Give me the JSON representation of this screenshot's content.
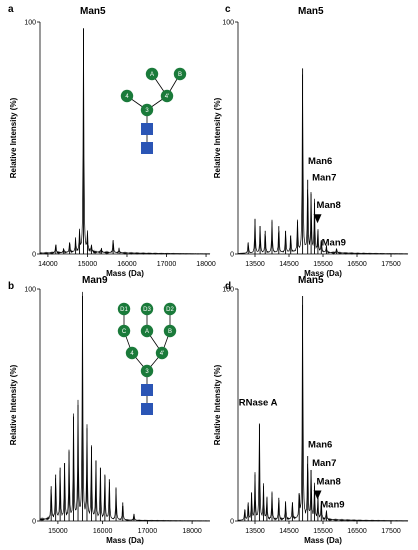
{
  "colors": {
    "trace": "#000000",
    "mannose": "#1a7a3a",
    "glcnac": "#2b55b5"
  },
  "chart_data": [
    {
      "panel": "a",
      "type": "line",
      "title": "Man5",
      "xlabel": "Mass (Da)",
      "ylabel": "Relative Intensity (%)",
      "xlim": [
        13800,
        18100
      ],
      "ylim": [
        0,
        100
      ],
      "xticks": [
        14000,
        15000,
        16000,
        17000,
        18000
      ],
      "yticks": [
        0,
        100
      ],
      "peaks": [
        {
          "x": 14200,
          "y": 4
        },
        {
          "x": 14400,
          "y": 2
        },
        {
          "x": 14550,
          "y": 5
        },
        {
          "x": 14700,
          "y": 6
        },
        {
          "x": 14800,
          "y": 9
        },
        {
          "x": 14900,
          "y": 97
        },
        {
          "x": 15000,
          "y": 8
        },
        {
          "x": 15100,
          "y": 3
        },
        {
          "x": 15350,
          "y": 2
        },
        {
          "x": 15650,
          "y": 6
        },
        {
          "x": 15800,
          "y": 2
        }
      ],
      "glycan": {
        "mannose": [
          {
            "id": "m3",
            "label": "3"
          },
          {
            "id": "m4a",
            "label": "4"
          },
          {
            "id": "m4b",
            "label": "4'"
          },
          {
            "id": "mA",
            "label": "A"
          },
          {
            "id": "mB",
            "label": "B"
          }
        ],
        "links": [
          [
            "m3",
            "m4a"
          ],
          [
            "m3",
            "m4b"
          ],
          [
            "m4b",
            "mA"
          ],
          [
            "m4b",
            "mB"
          ]
        ],
        "glcnac_count": 2
      }
    },
    {
      "panel": "b",
      "type": "line",
      "title": "Man9",
      "xlabel": "Mass (Da)",
      "ylabel": "Relative Intensity (%)",
      "xlim": [
        14600,
        18400
      ],
      "ylim": [
        0,
        100
      ],
      "xticks": [
        15000,
        16000,
        17000,
        18000
      ],
      "yticks": [
        0,
        100
      ],
      "peaks": [
        {
          "x": 14850,
          "y": 15
        },
        {
          "x": 14950,
          "y": 20
        },
        {
          "x": 15050,
          "y": 23
        },
        {
          "x": 15150,
          "y": 25
        },
        {
          "x": 15250,
          "y": 30
        },
        {
          "x": 15350,
          "y": 45
        },
        {
          "x": 15450,
          "y": 50
        },
        {
          "x": 15550,
          "y": 97
        },
        {
          "x": 15650,
          "y": 40
        },
        {
          "x": 15750,
          "y": 32
        },
        {
          "x": 15850,
          "y": 26
        },
        {
          "x": 15950,
          "y": 23
        },
        {
          "x": 16050,
          "y": 20
        },
        {
          "x": 16150,
          "y": 18
        },
        {
          "x": 16300,
          "y": 14
        },
        {
          "x": 16450,
          "y": 8
        },
        {
          "x": 16700,
          "y": 3
        }
      ],
      "glycan": {
        "mannose": [
          {
            "id": "m3",
            "label": "3"
          },
          {
            "id": "m4a",
            "label": "4"
          },
          {
            "id": "m4b",
            "label": "4'"
          },
          {
            "id": "mC",
            "label": "C"
          },
          {
            "id": "mA",
            "label": "A"
          },
          {
            "id": "mB",
            "label": "B"
          },
          {
            "id": "mD1",
            "label": "D1"
          },
          {
            "id": "mD3",
            "label": "D3"
          },
          {
            "id": "mD2",
            "label": "D2"
          }
        ],
        "links": [
          [
            "m3",
            "m4a"
          ],
          [
            "m3",
            "m4b"
          ],
          [
            "m4a",
            "mC"
          ],
          [
            "m4b",
            "mA"
          ],
          [
            "m4b",
            "mB"
          ],
          [
            "mC",
            "mD1"
          ],
          [
            "mA",
            "mD3"
          ],
          [
            "mB",
            "mD2"
          ]
        ],
        "glcnac_count": 2
      }
    },
    {
      "panel": "c",
      "type": "line",
      "title": "Man5",
      "xlabel": "Mass (Da)",
      "ylabel": "Relative Intensity (%)",
      "xlim": [
        13000,
        18000
      ],
      "ylim": [
        0,
        100
      ],
      "xticks": [
        13500,
        14500,
        15500,
        16500,
        17500
      ],
      "yticks": [
        0,
        100
      ],
      "peaks": [
        {
          "x": 13300,
          "y": 5
        },
        {
          "x": 13500,
          "y": 15
        },
        {
          "x": 13650,
          "y": 12
        },
        {
          "x": 13800,
          "y": 10
        },
        {
          "x": 14000,
          "y": 14
        },
        {
          "x": 14200,
          "y": 12
        },
        {
          "x": 14400,
          "y": 10
        },
        {
          "x": 14550,
          "y": 8
        },
        {
          "x": 14750,
          "y": 14
        },
        {
          "x": 14900,
          "y": 80
        },
        {
          "x": 15050,
          "y": 32
        },
        {
          "x": 15150,
          "y": 26
        },
        {
          "x": 15250,
          "y": 22
        },
        {
          "x": 15350,
          "y": 10
        },
        {
          "x": 15450,
          "y": 6
        },
        {
          "x": 15600,
          "y": 3
        },
        {
          "x": 15900,
          "y": 2
        }
      ],
      "annotations": [
        {
          "text": "Man6",
          "x": 15060,
          "y": 37
        },
        {
          "text": "Man7",
          "x": 15180,
          "y": 30
        },
        {
          "text": "Man8",
          "x": 15310,
          "y": 18
        },
        {
          "text": "Man9",
          "x": 15460,
          "y": 2
        }
      ]
    },
    {
      "panel": "d",
      "type": "line",
      "title": "Man5",
      "xlabel": "Mass (Da)",
      "ylabel": "Relative Intensity (%)",
      "xlim": [
        13000,
        18000
      ],
      "ylim": [
        0,
        100
      ],
      "xticks": [
        13500,
        14500,
        15500,
        16500,
        17500
      ],
      "yticks": [
        0,
        100
      ],
      "peaks": [
        {
          "x": 13200,
          "y": 5
        },
        {
          "x": 13300,
          "y": 8
        },
        {
          "x": 13400,
          "y": 12
        },
        {
          "x": 13500,
          "y": 20
        },
        {
          "x": 13630,
          "y": 42
        },
        {
          "x": 13750,
          "y": 15
        },
        {
          "x": 13850,
          "y": 10
        },
        {
          "x": 14000,
          "y": 12
        },
        {
          "x": 14200,
          "y": 10
        },
        {
          "x": 14400,
          "y": 8
        },
        {
          "x": 14600,
          "y": 8
        },
        {
          "x": 14800,
          "y": 12
        },
        {
          "x": 14900,
          "y": 97
        },
        {
          "x": 15050,
          "y": 28
        },
        {
          "x": 15150,
          "y": 22
        },
        {
          "x": 15250,
          "y": 15
        },
        {
          "x": 15350,
          "y": 10
        },
        {
          "x": 15450,
          "y": 8
        },
        {
          "x": 15600,
          "y": 4
        }
      ],
      "annotations": [
        {
          "text": "RNase A",
          "x": 13650,
          "y": 48
        },
        {
          "text": "Man6",
          "x": 15060,
          "y": 30
        },
        {
          "text": "Man7",
          "x": 15180,
          "y": 22
        },
        {
          "text": "Man8",
          "x": 15310,
          "y": 14
        },
        {
          "text": "Man9",
          "x": 15420,
          "y": 4
        }
      ]
    }
  ]
}
